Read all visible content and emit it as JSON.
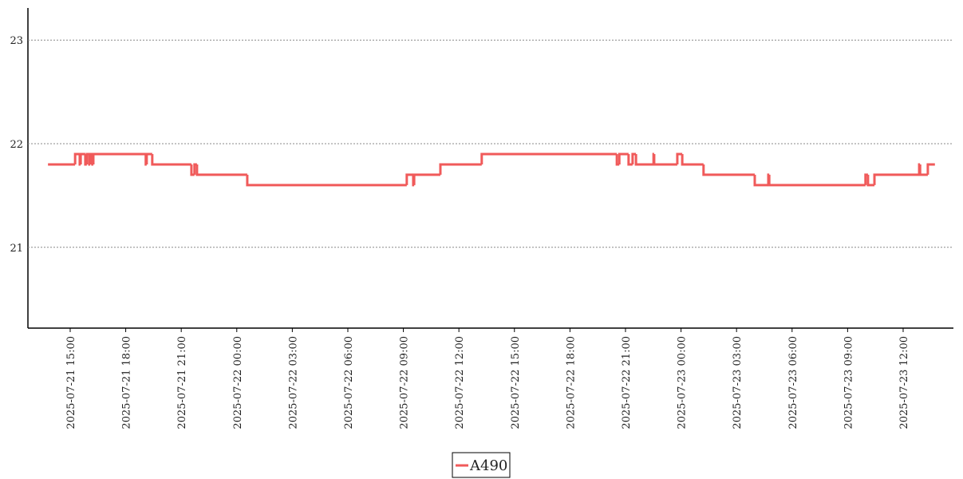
{
  "chart_data": {
    "type": "line",
    "drawstyle": "steps-post",
    "x": [
      "2025-07-21 13:48",
      "2025-07-21 15:16",
      "2025-07-21 15:31",
      "2025-07-21 15:34",
      "2025-07-21 15:49",
      "2025-07-21 15:54",
      "2025-07-21 16:02",
      "2025-07-21 16:05",
      "2025-07-21 16:12",
      "2025-07-21 16:15",
      "2025-07-21 19:05",
      "2025-07-21 19:08",
      "2025-07-21 19:26",
      "2025-07-21 21:33",
      "2025-07-21 21:43",
      "2025-07-21 21:51",
      "2025-07-22 00:34",
      "2025-07-22 09:11",
      "2025-07-22 09:32",
      "2025-07-22 09:35",
      "2025-07-22 11:00",
      "2025-07-22 13:14",
      "2025-07-22 20:32",
      "2025-07-22 20:40",
      "2025-07-22 21:10",
      "2025-07-22 21:23",
      "2025-07-22 21:34",
      "2025-07-22 22:31",
      "2025-07-22 22:33",
      "2025-07-22 23:48",
      "2025-07-23 00:04",
      "2025-07-23 01:13",
      "2025-07-23 03:59",
      "2025-07-23 04:43",
      "2025-07-23 04:46",
      "2025-07-23 09:58",
      "2025-07-23 10:06",
      "2025-07-23 10:27",
      "2025-07-23 12:52",
      "2025-07-23 12:55",
      "2025-07-23 13:20",
      "2025-07-23 13:43"
    ],
    "series": [
      {
        "name": "A490",
        "color": "#f05a5a",
        "values": [
          21.8,
          21.9,
          21.8,
          21.9,
          21.8,
          21.9,
          21.8,
          21.9,
          21.8,
          21.9,
          21.8,
          21.9,
          21.8,
          21.7,
          21.8,
          21.7,
          21.6,
          21.7,
          21.6,
          21.7,
          21.8,
          21.9,
          21.8,
          21.9,
          21.8,
          21.9,
          21.8,
          21.9,
          21.8,
          21.9,
          21.8,
          21.7,
          21.6,
          21.7,
          21.6,
          21.7,
          21.6,
          21.7,
          21.8,
          21.7,
          21.8,
          21.8
        ]
      }
    ],
    "xlim": [
      "2025-07-21 12:43",
      "2025-07-23 14:43"
    ],
    "xticks": [
      "2025-07-21 15:00",
      "2025-07-21 18:00",
      "2025-07-21 21:00",
      "2025-07-22 00:00",
      "2025-07-22 03:00",
      "2025-07-22 06:00",
      "2025-07-22 09:00",
      "2025-07-22 12:00",
      "2025-07-22 15:00",
      "2025-07-22 18:00",
      "2025-07-22 21:00",
      "2025-07-23 00:00",
      "2025-07-23 03:00",
      "2025-07-23 06:00",
      "2025-07-23 09:00",
      "2025-07-23 12:00"
    ],
    "ylim": [
      20.22,
      23.31
    ],
    "yticks": [
      21,
      22,
      23
    ],
    "grid": true,
    "legend": "bottom"
  }
}
